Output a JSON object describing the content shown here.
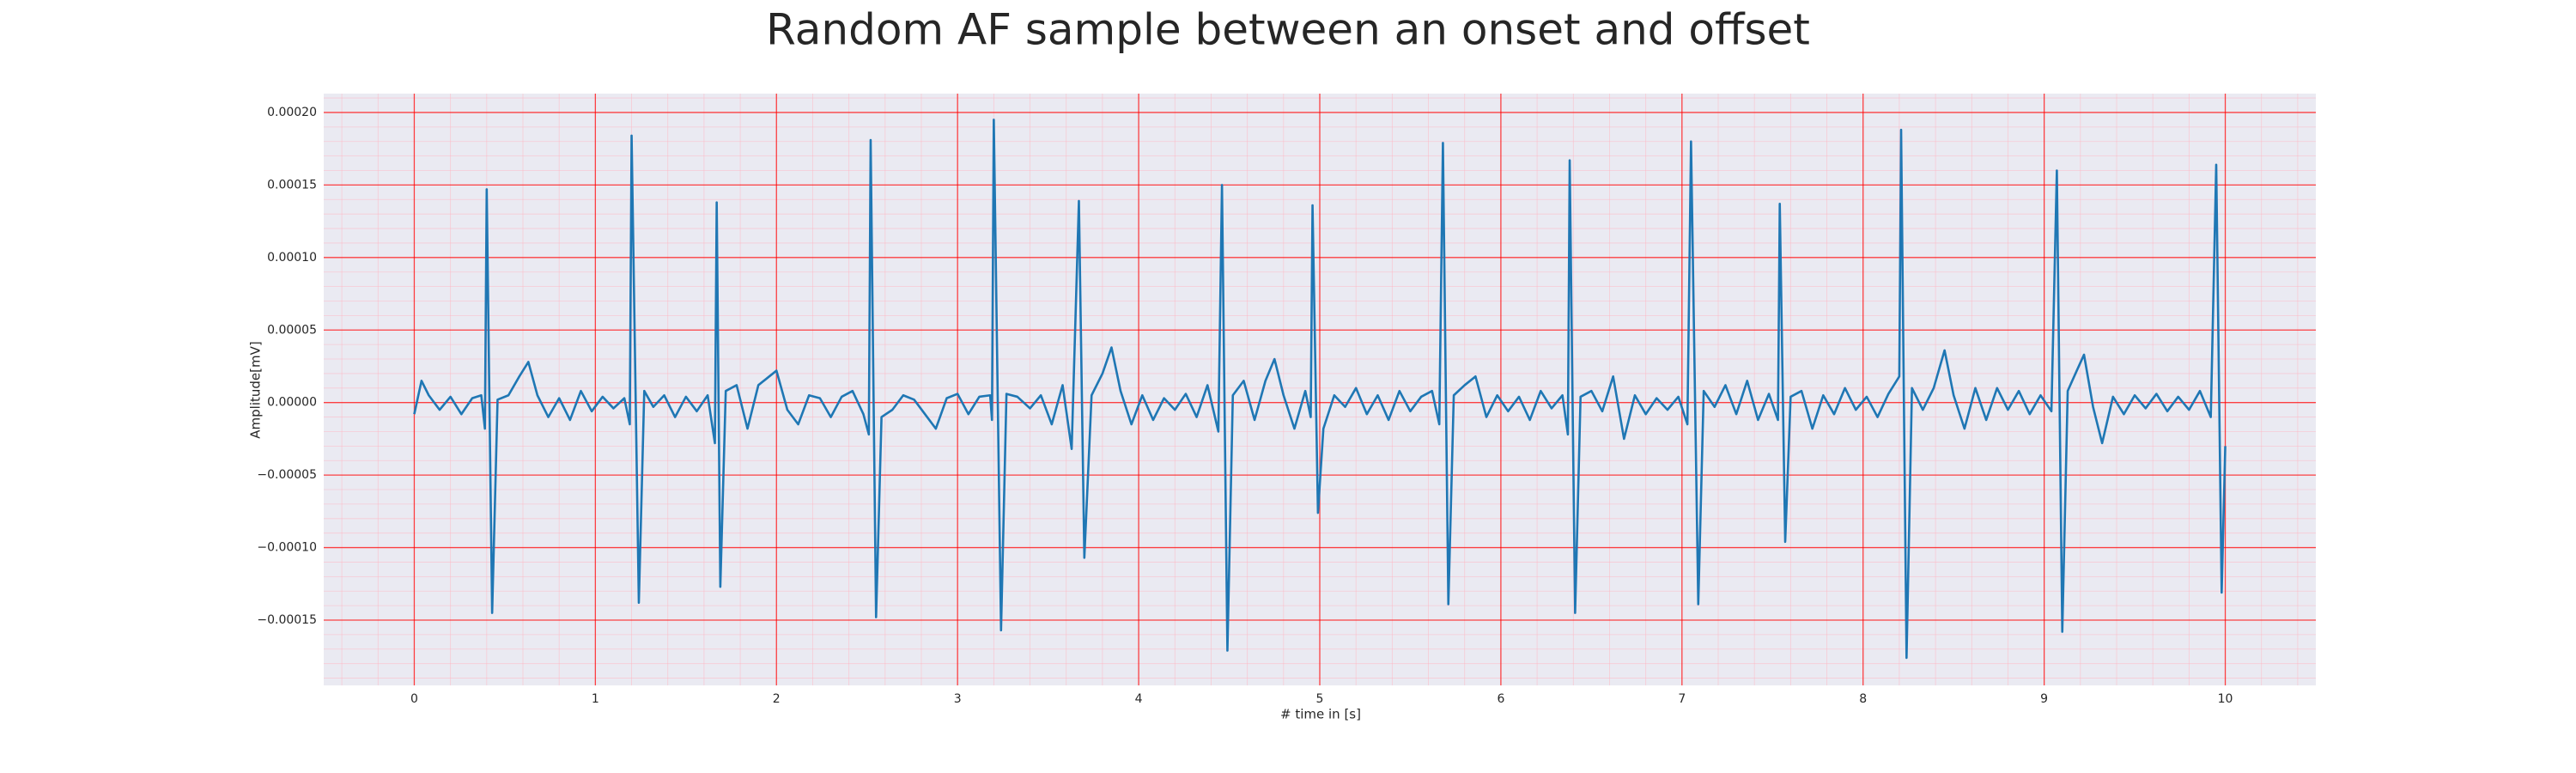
{
  "chart_data": {
    "type": "line",
    "title": "Random AF sample between an onset and offset",
    "xlabel": "# time in [s]",
    "ylabel": "Amplitude[mV]",
    "color": "#1f77b4",
    "grid": true,
    "grid_color": "#ff0000",
    "minor_grid_color": "#ffb6c1",
    "background": "#eaeaf2",
    "minor_grid_step": {
      "x": 0.2,
      "y": 1e-05
    },
    "xlim": [
      -0.5,
      10.5
    ],
    "ylim": [
      -0.000195,
      0.000213
    ],
    "xticks": [
      0,
      1,
      2,
      3,
      4,
      5,
      6,
      7,
      8,
      9,
      10
    ],
    "yticks": [
      {
        "value": -0.00015,
        "label": "−0.00015"
      },
      {
        "value": -0.0001,
        "label": "−0.00010"
      },
      {
        "value": -5e-05,
        "label": "−0.00005"
      },
      {
        "value": 0,
        "label": "0.00000"
      },
      {
        "value": 5e-05,
        "label": "0.00005"
      },
      {
        "value": 0.0001,
        "label": "0.00010"
      },
      {
        "value": 0.00015,
        "label": "0.00015"
      },
      {
        "value": 0.0002,
        "label": "0.00020"
      }
    ],
    "x": [
      0,
      0.04,
      0.08,
      0.14,
      0.2,
      0.26,
      0.32,
      0.37,
      0.39,
      0.4,
      0.43,
      0.46,
      0.52,
      0.58,
      0.63,
      0.68,
      0.74,
      0.8,
      0.86,
      0.92,
      0.98,
      1.04,
      1.1,
      1.16,
      1.19,
      1.2,
      1.24,
      1.27,
      1.32,
      1.38,
      1.44,
      1.5,
      1.56,
      1.62,
      1.66,
      1.67,
      1.69,
      1.72,
      1.78,
      1.84,
      1.9,
      1.96,
      2.0,
      2.06,
      2.12,
      2.18,
      2.24,
      2.3,
      2.36,
      2.42,
      2.48,
      2.51,
      2.52,
      2.55,
      2.58,
      2.64,
      2.7,
      2.76,
      2.82,
      2.88,
      2.94,
      3.0,
      3.06,
      3.12,
      3.18,
      3.19,
      3.2,
      3.24,
      3.27,
      3.33,
      3.4,
      3.46,
      3.52,
      3.58,
      3.63,
      3.67,
      3.7,
      3.74,
      3.8,
      3.85,
      3.9,
      3.96,
      4.02,
      4.08,
      4.14,
      4.2,
      4.26,
      4.32,
      4.38,
      4.44,
      4.46,
      4.49,
      4.52,
      4.58,
      4.64,
      4.7,
      4.75,
      4.8,
      4.86,
      4.92,
      4.95,
      4.96,
      4.99,
      5.02,
      5.08,
      5.14,
      5.2,
      5.26,
      5.32,
      5.38,
      5.44,
      5.5,
      5.56,
      5.62,
      5.66,
      5.68,
      5.71,
      5.74,
      5.8,
      5.86,
      5.92,
      5.98,
      6.04,
      6.1,
      6.16,
      6.22,
      6.28,
      6.34,
      6.37,
      6.38,
      6.41,
      6.44,
      6.5,
      6.56,
      6.62,
      6.68,
      6.74,
      6.8,
      6.86,
      6.92,
      6.98,
      7.03,
      7.05,
      7.09,
      7.12,
      7.18,
      7.24,
      7.3,
      7.36,
      7.42,
      7.48,
      7.53,
      7.54,
      7.57,
      7.6,
      7.66,
      7.72,
      7.78,
      7.84,
      7.9,
      7.96,
      8.02,
      8.08,
      8.14,
      8.2,
      8.21,
      8.24,
      8.27,
      8.33,
      8.39,
      8.45,
      8.5,
      8.56,
      8.62,
      8.68,
      8.74,
      8.8,
      8.86,
      8.92,
      8.98,
      9.04,
      9.07,
      9.1,
      9.13,
      9.18,
      9.22,
      9.27,
      9.32,
      9.38,
      9.44,
      9.5,
      9.56,
      9.62,
      9.68,
      9.74,
      9.8,
      9.86,
      9.92,
      9.95,
      9.98,
      10.0
    ],
    "values": [
      -8e-06,
      1.5e-05,
      5e-06,
      -5e-06,
      4e-06,
      -8e-06,
      3e-06,
      5e-06,
      -1.8e-05,
      0.000147,
      -0.000145,
      2e-06,
      5e-06,
      1.8e-05,
      2.8e-05,
      5e-06,
      -1e-05,
      3e-06,
      -1.2e-05,
      8e-06,
      -6e-06,
      4e-06,
      -4e-06,
      3e-06,
      -1.5e-05,
      0.000184,
      -0.000138,
      8e-06,
      -3e-06,
      5e-06,
      -1e-05,
      4e-06,
      -6e-06,
      5e-06,
      -2.8e-05,
      0.000138,
      -0.000127,
      8e-06,
      1.2e-05,
      -1.8e-05,
      1.2e-05,
      1.8e-05,
      2.2e-05,
      -5e-06,
      -1.5e-05,
      5e-06,
      3e-06,
      -1e-05,
      4e-06,
      8e-06,
      -8e-06,
      -2.2e-05,
      0.000181,
      -0.000148,
      -1e-05,
      -5e-06,
      5e-06,
      2e-06,
      -8e-06,
      -1.8e-05,
      3e-06,
      6e-06,
      -8e-06,
      4e-06,
      5e-06,
      -1.2e-05,
      0.000195,
      -0.000157,
      6e-06,
      4e-06,
      -4e-06,
      5e-06,
      -1.5e-05,
      1.2e-05,
      -3.2e-05,
      0.000139,
      -0.000107,
      5e-06,
      2e-05,
      3.8e-05,
      8e-06,
      -1.5e-05,
      5e-06,
      -1.2e-05,
      3e-06,
      -5e-06,
      6e-06,
      -1e-05,
      1.2e-05,
      -2e-05,
      0.00015,
      -0.000171,
      5e-06,
      1.5e-05,
      -1.2e-05,
      1.5e-05,
      3e-05,
      5e-06,
      -1.8e-05,
      8e-06,
      -1e-05,
      0.000136,
      -7.6e-05,
      -1.8e-05,
      5e-06,
      -3e-06,
      1e-05,
      -8e-06,
      5e-06,
      -1.2e-05,
      8e-06,
      -6e-06,
      4e-06,
      8e-06,
      -1.5e-05,
      0.000179,
      -0.000139,
      5e-06,
      1.2e-05,
      1.8e-05,
      -1e-05,
      5e-06,
      -6e-06,
      4e-06,
      -1.2e-05,
      8e-06,
      -4e-06,
      5e-06,
      -2.2e-05,
      0.000167,
      -0.000145,
      4e-06,
      8e-06,
      -6e-06,
      1.8e-05,
      -2.5e-05,
      5e-06,
      -8e-06,
      3e-06,
      -5e-06,
      4e-06,
      -1.5e-05,
      0.00018,
      -0.000139,
      8e-06,
      -3e-06,
      1.2e-05,
      -8e-06,
      1.5e-05,
      -1.2e-05,
      6e-06,
      -1.2e-05,
      0.000137,
      -9.6e-05,
      4e-06,
      8e-06,
      -1.8e-05,
      5e-06,
      -8e-06,
      1e-05,
      -5e-06,
      4e-06,
      -1e-05,
      6e-06,
      1.8e-05,
      0.000188,
      -0.000176,
      1e-05,
      -5e-06,
      1e-05,
      3.6e-05,
      5e-06,
      -1.8e-05,
      1e-05,
      -1.2e-05,
      1e-05,
      -5e-06,
      8e-06,
      -8e-06,
      5e-06,
      -6e-06,
      0.00016,
      -0.000158,
      8e-06,
      2.2e-05,
      3.3e-05,
      -3e-06,
      -2.8e-05,
      4e-06,
      -8e-06,
      5e-06,
      -4e-06,
      6e-06,
      -6e-06,
      4e-06,
      -5e-06,
      8e-06,
      -1e-05,
      0.000164,
      -0.000131,
      -3e-05
    ]
  }
}
